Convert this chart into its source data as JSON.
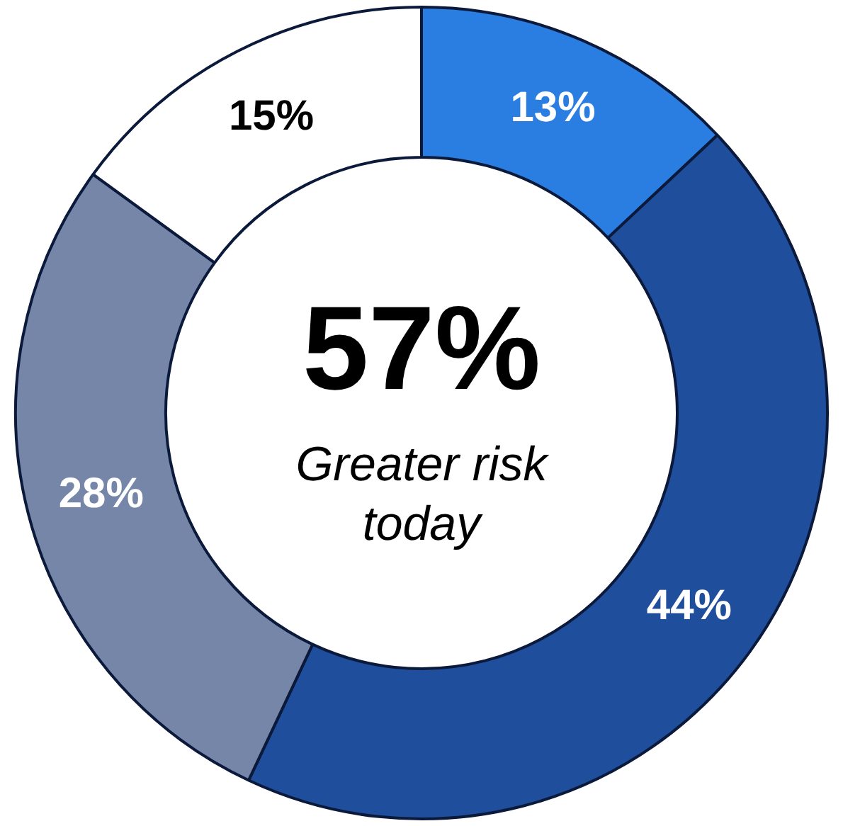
{
  "chart_data": {
    "type": "donut",
    "categories": [
      null,
      null,
      null,
      null
    ],
    "values": [
      13,
      44,
      28,
      15
    ],
    "colors": [
      "#2a7de1",
      "#1f4e9c",
      "#7686a8",
      "#ffffff"
    ],
    "value_labels": [
      "13%",
      "44%",
      "28%",
      "15%"
    ],
    "annotations": [
      "57%",
      "Greater risk today"
    ],
    "legend": false
  }
}
